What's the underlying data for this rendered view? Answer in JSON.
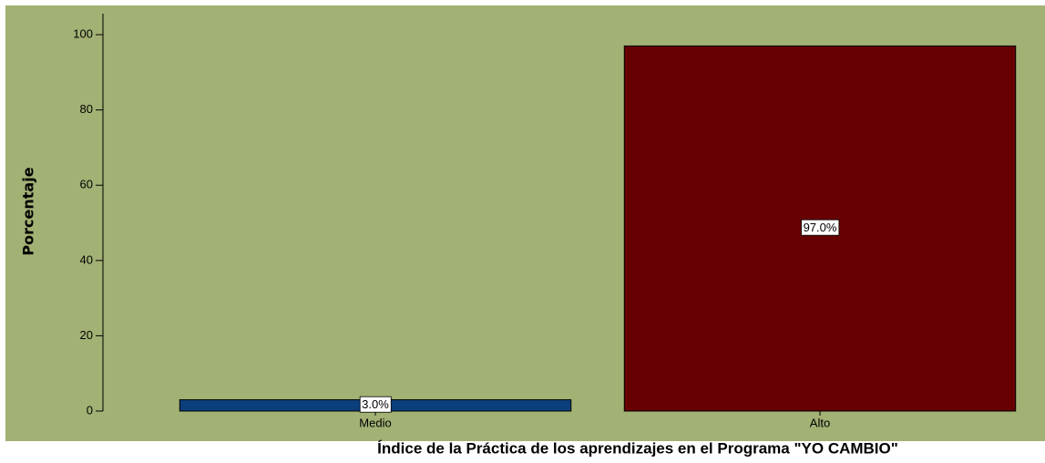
{
  "chart_data": {
    "type": "bar",
    "x_label": "Índice de la Práctica de los aprendizajes en el Programa \"YO CAMBIO\"",
    "y_label": "Porcentaje",
    "categories": [
      "Medio",
      "Alto"
    ],
    "values": [
      3.0,
      97.0
    ],
    "value_labels": [
      "3.0%",
      "97.0%"
    ],
    "colors": [
      "#0b3f7c",
      "#660000"
    ],
    "ylim": [
      0,
      105
    ],
    "yticks": [
      0,
      20,
      40,
      60,
      80,
      100
    ],
    "grid": false
  }
}
